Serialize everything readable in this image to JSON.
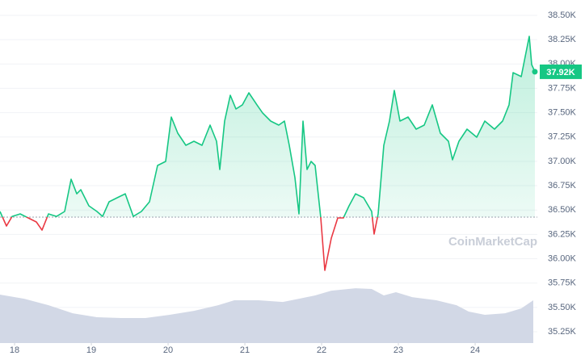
{
  "chart_data": {
    "type": "line",
    "watermark": "CoinMarketCap",
    "xlim": [
      17.81,
      24.81
    ],
    "ylim": [
      35134,
      38657
    ],
    "xticks": [
      18,
      19,
      20,
      21,
      22,
      23,
      24
    ],
    "yticks": [
      {
        "value": 38500,
        "label": "38.50K"
      },
      {
        "value": 38250,
        "label": "38.25K"
      },
      {
        "value": 38000,
        "label": "38.00K"
      },
      {
        "value": 37750,
        "label": "37.75K"
      },
      {
        "value": 37500,
        "label": "37.50K"
      },
      {
        "value": 37250,
        "label": "37.25K"
      },
      {
        "value": 37000,
        "label": "37.00K"
      },
      {
        "value": 36750,
        "label": "36.75K"
      },
      {
        "value": 36500,
        "label": "36.50K"
      },
      {
        "value": 36250,
        "label": "36.25K"
      },
      {
        "value": 36000,
        "label": "36.00K"
      },
      {
        "value": 35750,
        "label": "35.75K"
      },
      {
        "value": 35500,
        "label": "35.50K"
      },
      {
        "value": 35250,
        "label": "35.25K"
      }
    ],
    "grid": true,
    "baseline": 36427,
    "current": {
      "value": 37920,
      "label": "37.92K"
    },
    "series": [
      {
        "color": "#16c784",
        "down_color": "#ea3943",
        "x": [
          17.81,
          17.894,
          17.968,
          18.073,
          18.178,
          18.284,
          18.357,
          18.442,
          18.547,
          18.652,
          18.736,
          18.81,
          18.863,
          18.968,
          19.073,
          19.147,
          19.231,
          19.336,
          19.442,
          19.547,
          19.652,
          19.757,
          19.863,
          19.968,
          20.042,
          20.126,
          20.231,
          20.336,
          20.442,
          20.547,
          20.631,
          20.673,
          20.736,
          20.81,
          20.884,
          20.968,
          21.052,
          21.157,
          21.231,
          21.336,
          21.442,
          21.515,
          21.578,
          21.652,
          21.705,
          21.757,
          21.81,
          21.863,
          21.915,
          21.989,
          22.042,
          22.126,
          22.21,
          22.284,
          22.357,
          22.442,
          22.547,
          22.652,
          22.684,
          22.736,
          22.81,
          22.884,
          22.947,
          23.021,
          23.126,
          23.231,
          23.336,
          23.442,
          23.547,
          23.652,
          23.705,
          23.789,
          23.894,
          24.021,
          24.126,
          24.252,
          24.357,
          24.442,
          24.494,
          24.6,
          24.652,
          24.705,
          24.736,
          24.778
        ],
        "values": [
          36485,
          36336,
          36435,
          36460,
          36419,
          36377,
          36294,
          36460,
          36435,
          36485,
          36817,
          36667,
          36709,
          36543,
          36485,
          36435,
          36585,
          36626,
          36667,
          36435,
          36485,
          36585,
          36958,
          36999,
          37455,
          37289,
          37165,
          37206,
          37165,
          37372,
          37206,
          36916,
          37414,
          37679,
          37538,
          37580,
          37704,
          37580,
          37497,
          37414,
          37372,
          37414,
          37165,
          36833,
          36460,
          37414,
          36916,
          36999,
          36958,
          36419,
          35880,
          36211,
          36419,
          36419,
          36543,
          36667,
          36626,
          36485,
          36253,
          36460,
          37165,
          37414,
          37729,
          37414,
          37455,
          37331,
          37372,
          37580,
          37289,
          37206,
          37016,
          37206,
          37331,
          37248,
          37414,
          37331,
          37414,
          37580,
          37911,
          37870,
          38077,
          38284,
          37994,
          37920
        ]
      }
    ],
    "volume": {
      "color": "#d2d8e6",
      "x": [
        17.81,
        18.126,
        18.442,
        18.757,
        19.073,
        19.389,
        19.705,
        20.021,
        20.336,
        20.652,
        20.863,
        21.178,
        21.494,
        21.705,
        21.915,
        22.126,
        22.442,
        22.652,
        22.81,
        22.968,
        23.178,
        23.494,
        23.757,
        23.915,
        24.126,
        24.389,
        24.6,
        24.757
      ],
      "values": [
        35631,
        35589,
        35523,
        35440,
        35399,
        35391,
        35391,
        35424,
        35465,
        35523,
        35573,
        35573,
        35556,
        35589,
        35623,
        35672,
        35697,
        35689,
        35623,
        35656,
        35606,
        35573,
        35523,
        35457,
        35424,
        35440,
        35490,
        35573
      ]
    }
  }
}
